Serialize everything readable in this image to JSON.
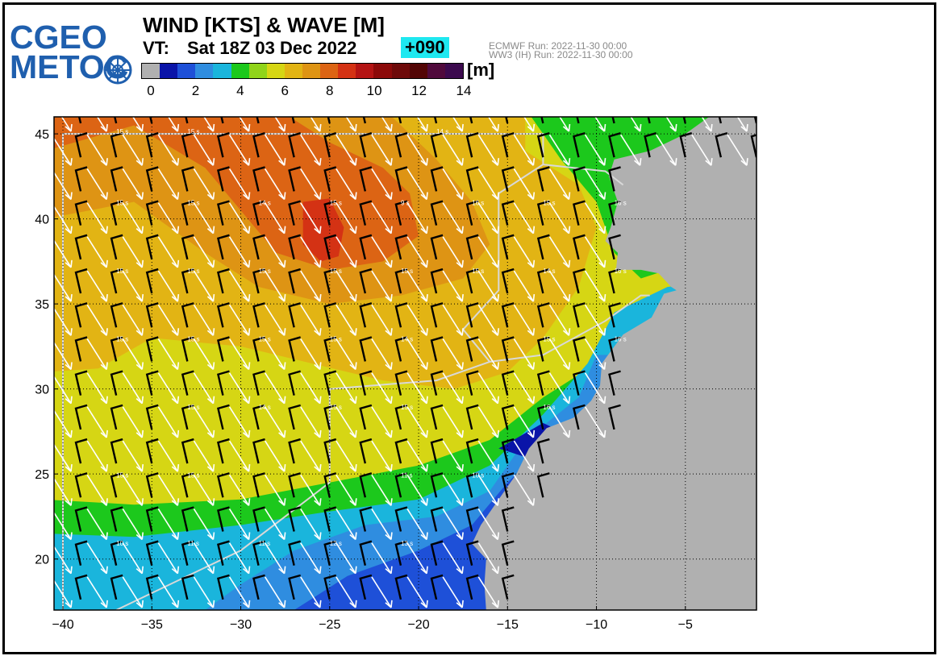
{
  "logo": {
    "line1": "CGEO",
    "line2": "METOC"
  },
  "title": "WIND [KTS] & WAVE [M]",
  "valid_time": {
    "label": "VT:",
    "value": "Sat 18Z 03 Dec 2022"
  },
  "lead_time": "+090",
  "run_info": {
    "line1": "ECMWF   Run: 2022-11-30 00:00",
    "line2": "WW3 (IH) Run: 2022-11-30 00:00"
  },
  "colorbar": {
    "unit": "[m]",
    "colors": [
      "#b0b0b0",
      "#0a14a8",
      "#1e50d8",
      "#2f8de0",
      "#1ab5dc",
      "#1cc81c",
      "#90d41a",
      "#d6d614",
      "#e2b414",
      "#de9414",
      "#dc6414",
      "#d43214",
      "#b41414",
      "#8c0a0a",
      "#6e0a0a",
      "#520505",
      "#500a3c",
      "#3c0a4e"
    ],
    "tick_labels": [
      "0",
      "2",
      "4",
      "6",
      "8",
      "10",
      "12",
      "14"
    ],
    "tick_values": [
      0,
      2,
      4,
      6,
      8,
      10,
      12,
      14
    ],
    "range": [
      0,
      14
    ]
  },
  "map": {
    "lon_range": [
      -40.5,
      -1
    ],
    "lat_range": [
      17,
      46
    ],
    "lon_ticks": [
      -40,
      -35,
      -30,
      -25,
      -20,
      -15,
      -10,
      -5
    ],
    "lat_ticks": [
      20,
      25,
      30,
      35,
      40,
      45
    ],
    "lon_tick_labels": [
      "−40",
      "−35",
      "−30",
      "−25",
      "−20",
      "−15",
      "−10",
      "−5"
    ],
    "lat_tick_labels": [
      "20",
      "25",
      "30",
      "35",
      "40",
      "45"
    ],
    "land_color": "#b0b0b0",
    "period_labels": [
      {
        "lon": -37,
        "lat": 45,
        "text": "15 s"
      },
      {
        "lon": -33,
        "lat": 45,
        "text": "15 s"
      },
      {
        "lon": -19,
        "lat": 45,
        "text": "14 s"
      },
      {
        "lon": -37,
        "lat": 40.8,
        "text": "15 s"
      },
      {
        "lon": -33,
        "lat": 40.8,
        "text": "15 s"
      },
      {
        "lon": -29,
        "lat": 40.8,
        "text": "14 s"
      },
      {
        "lon": -25,
        "lat": 40.8,
        "text": "15 s"
      },
      {
        "lon": -21,
        "lat": 40.8,
        "text": "9 s"
      },
      {
        "lon": -17,
        "lat": 40.8,
        "text": "16 s"
      },
      {
        "lon": -13,
        "lat": 40.8,
        "text": "15 s"
      },
      {
        "lon": -9,
        "lat": 40.8,
        "text": "16 s"
      },
      {
        "lon": -37,
        "lat": 36.8,
        "text": "15 s"
      },
      {
        "lon": -33,
        "lat": 36.8,
        "text": "15 s"
      },
      {
        "lon": -29,
        "lat": 36.8,
        "text": "15 s"
      },
      {
        "lon": -25,
        "lat": 36.8,
        "text": "15 s"
      },
      {
        "lon": -21,
        "lat": 36.8,
        "text": "15 s"
      },
      {
        "lon": -17,
        "lat": 36.8,
        "text": "15 s"
      },
      {
        "lon": -13,
        "lat": 36.8,
        "text": "14 s"
      },
      {
        "lon": -9,
        "lat": 36.8,
        "text": "16 s"
      },
      {
        "lon": -37,
        "lat": 32.8,
        "text": "15 s"
      },
      {
        "lon": -33,
        "lat": 32.8,
        "text": "15 s"
      },
      {
        "lon": -29,
        "lat": 32.8,
        "text": "15 s"
      },
      {
        "lon": -25,
        "lat": 32.8,
        "text": "15 s"
      },
      {
        "lon": -21,
        "lat": 32.8,
        "text": "14 s"
      },
      {
        "lon": -13,
        "lat": 32.8,
        "text": "15 s"
      },
      {
        "lon": -9,
        "lat": 32.8,
        "text": "16 s"
      },
      {
        "lon": -33,
        "lat": 28.8,
        "text": "15 s"
      },
      {
        "lon": -29,
        "lat": 28.8,
        "text": "14 s"
      },
      {
        "lon": -25,
        "lat": 28.8,
        "text": "15 s"
      },
      {
        "lon": -21,
        "lat": 28.8,
        "text": "15 s"
      },
      {
        "lon": -13,
        "lat": 28.8,
        "text": "16 s"
      },
      {
        "lon": -37,
        "lat": 24.8,
        "text": "15 s"
      },
      {
        "lon": -33,
        "lat": 24.8,
        "text": "15 s"
      },
      {
        "lon": -21,
        "lat": 24.8,
        "text": "11 s"
      },
      {
        "lon": -17,
        "lat": 24.8,
        "text": "10 s"
      },
      {
        "lon": -37,
        "lat": 20.8,
        "text": "10 s"
      },
      {
        "lon": -33,
        "lat": 20.8,
        "text": "11 s"
      },
      {
        "lon": -29,
        "lat": 20.8,
        "text": "11 s"
      },
      {
        "lon": -25,
        "lat": 20.8,
        "text": "12 s"
      },
      {
        "lon": -21,
        "lat": 20.8,
        "text": "13 s"
      }
    ]
  }
}
